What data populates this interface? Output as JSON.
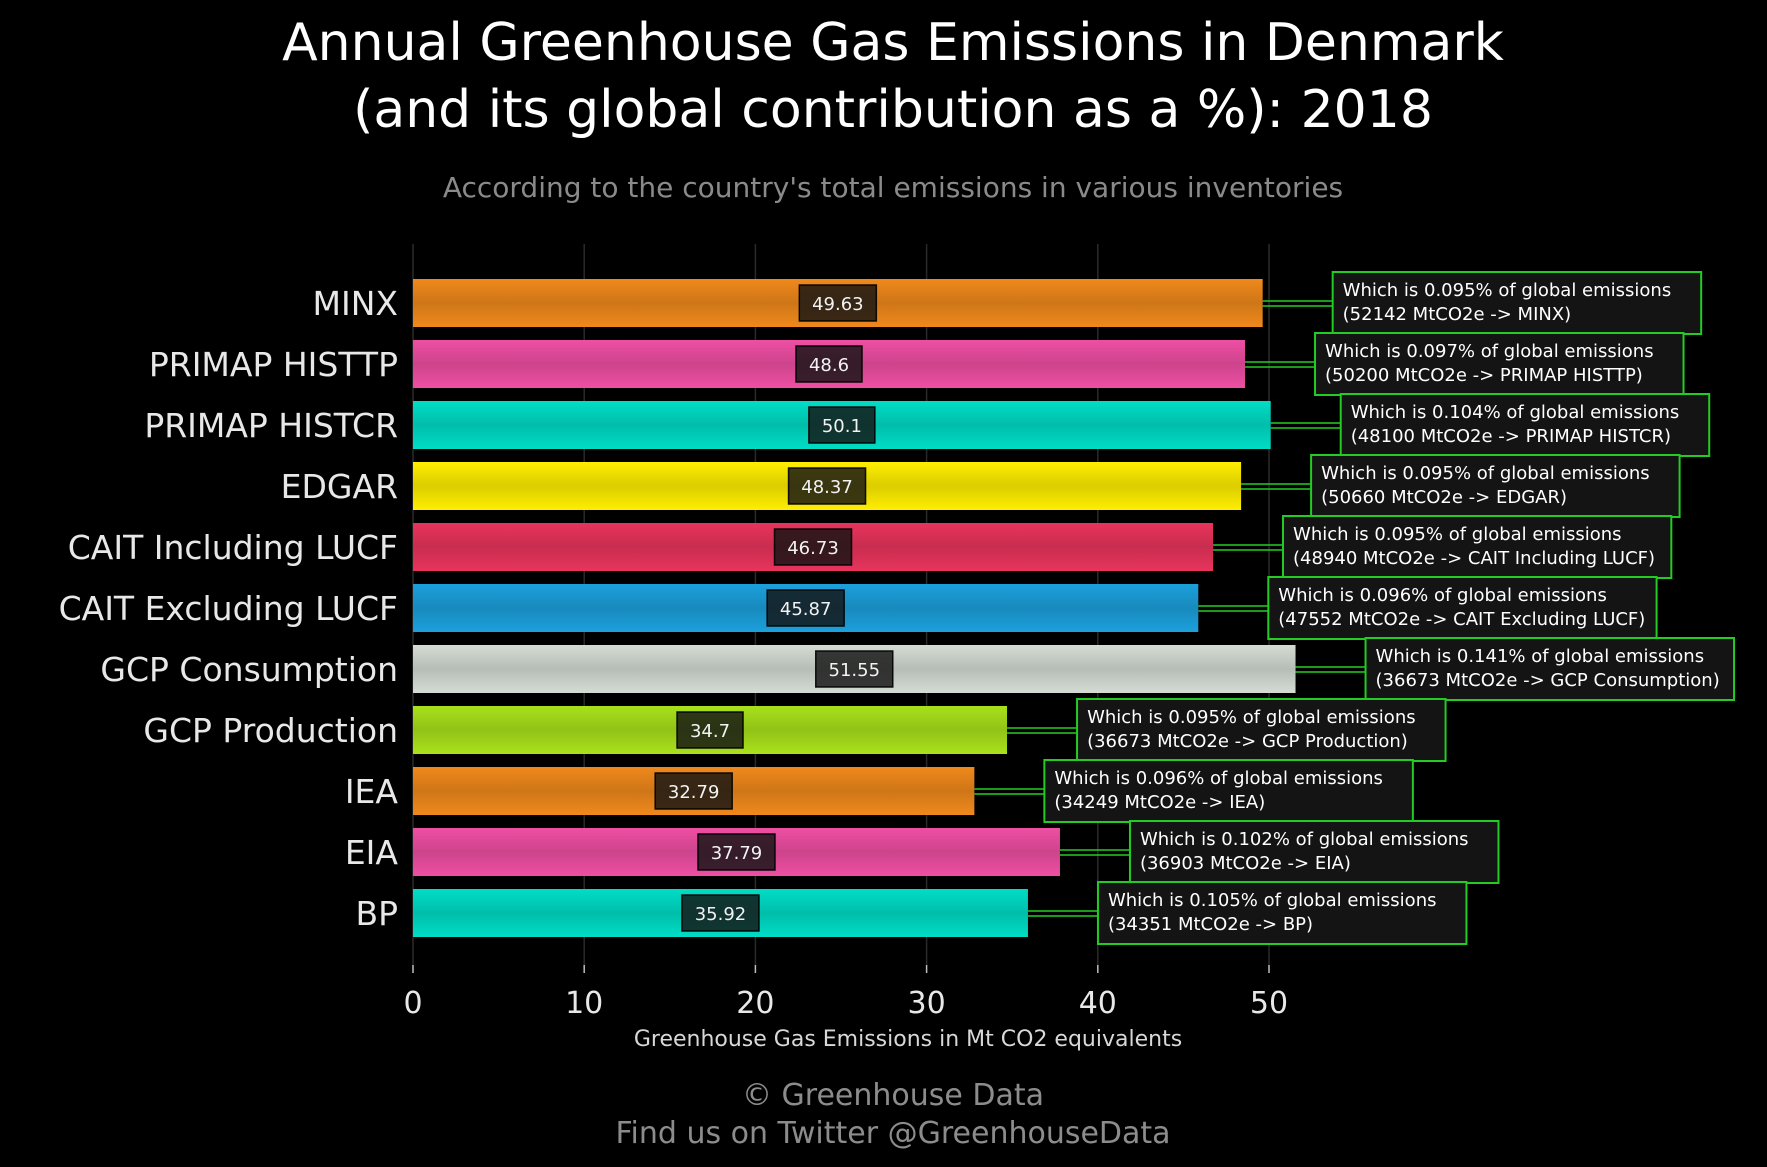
{
  "title_line1": "Annual Greenhouse Gas Emissions in Denmark",
  "title_line2": "(and its global contribution as a %): 2018",
  "subtitle": "According to the country's total emissions in various inventories",
  "footer_line1": "© Greenhouse Data",
  "footer_line2": "Find us on Twitter @GreenhouseData",
  "colors": {
    "background": "#000000",
    "annotation_border": "#22cc22",
    "annotation_fill": "#141414",
    "connector": "#22cc22",
    "grid": "#2a2a2a"
  },
  "chart_data": {
    "type": "bar",
    "orientation": "horizontal",
    "title": "Annual Greenhouse Gas Emissions in Denmark (and its global contribution as a %): 2018",
    "subtitle": "According to the country's total emissions in various inventories",
    "xlabel": "Greenhouse Gas Emissions in Mt CO2 equivalents",
    "ylabel": "",
    "xlim": [
      0,
      60
    ],
    "xticks": [
      0,
      10,
      20,
      30,
      40,
      50
    ],
    "grid": true,
    "categories": [
      "MINX",
      "PRIMAP HISTTP",
      "PRIMAP HISTCR",
      "EDGAR",
      "CAIT Including LUCF",
      "CAIT Excluding LUCF",
      "GCP Consumption",
      "GCP Production",
      "IEA",
      "EIA",
      "BP"
    ],
    "values": [
      49.63,
      48.6,
      50.1,
      48.37,
      46.73,
      45.87,
      51.55,
      34.7,
      32.79,
      37.79,
      35.92
    ],
    "bar_colors": [
      "#f0891c",
      "#ee4fa3",
      "#00ddc6",
      "#ffee00",
      "#e8345c",
      "#1ca0dc",
      "#d4dcd4",
      "#a9e21b",
      "#f0891c",
      "#ee4fa3",
      "#00ddc6"
    ],
    "annotations": [
      {
        "line1": "Which is 0.095% of global emissions",
        "line2": "(52142 MtCO2e -> MINX)"
      },
      {
        "line1": "Which is 0.097% of global emissions",
        "line2": "(50200 MtCO2e -> PRIMAP HISTTP)"
      },
      {
        "line1": "Which is 0.104% of global emissions",
        "line2": "(48100 MtCO2e -> PRIMAP HISTCR)"
      },
      {
        "line1": "Which is 0.095% of global emissions",
        "line2": "(50660 MtCO2e -> EDGAR)"
      },
      {
        "line1": "Which is 0.095% of global emissions",
        "line2": "(48940 MtCO2e -> CAIT Including LUCF)"
      },
      {
        "line1": "Which is 0.096% of global emissions",
        "line2": "(47552 MtCO2e -> CAIT Excluding LUCF)"
      },
      {
        "line1": "Which is 0.141% of global emissions",
        "line2": "(36673 MtCO2e -> GCP Consumption)"
      },
      {
        "line1": "Which is 0.095% of global emissions",
        "line2": "(36673 MtCO2e -> GCP Production)"
      },
      {
        "line1": "Which is 0.096% of global emissions",
        "line2": "(34249 MtCO2e -> IEA)"
      },
      {
        "line1": "Which is 0.102% of global emissions",
        "line2": "(36903 MtCO2e -> EIA)"
      },
      {
        "line1": "Which is 0.105% of global emissions",
        "line2": "(34351 MtCO2e -> BP)"
      }
    ]
  }
}
